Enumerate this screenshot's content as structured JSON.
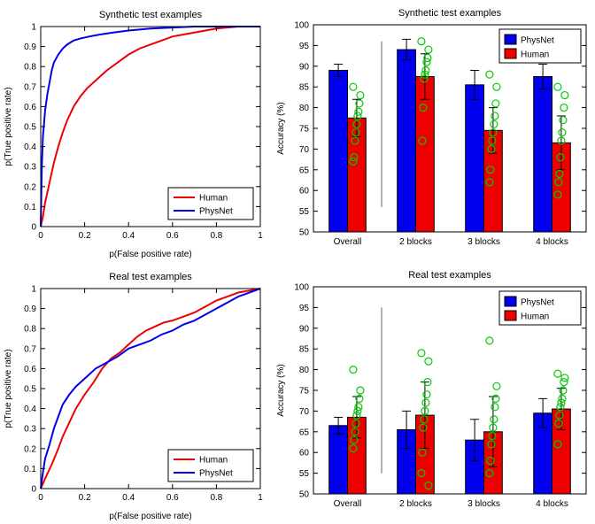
{
  "figure": {
    "background": "#ffffff"
  },
  "colors": {
    "physnet": "#0000ee",
    "human": "#ee0000",
    "subject_points": "#00cc00",
    "separator": "#999999",
    "error_bar": "#000000"
  },
  "chart_data": [
    {
      "id": "roc_synthetic",
      "type": "line",
      "title": "Synthetic test examples",
      "xlabel": "p(False positive rate)",
      "ylabel": "p(True positive rate)",
      "xlim": [
        0,
        1
      ],
      "ylim": [
        0,
        1
      ],
      "xticks": [
        0,
        0.2,
        0.4,
        0.6,
        0.8,
        1
      ],
      "yticks": [
        0,
        0.1,
        0.2,
        0.3,
        0.4,
        0.5,
        0.6,
        0.7,
        0.8,
        0.9,
        1
      ],
      "grid": false,
      "legend": {
        "position": "lower-right"
      },
      "series": [
        {
          "name": "Human",
          "color": "#ee0000",
          "x": [
            0,
            0.01,
            0.02,
            0.04,
            0.06,
            0.08,
            0.1,
            0.12,
            0.15,
            0.18,
            0.21,
            0.25,
            0.3,
            0.35,
            0.4,
            0.45,
            0.5,
            0.55,
            0.6,
            0.65,
            0.7,
            0.75,
            0.8,
            0.85,
            0.9,
            1
          ],
          "y": [
            0,
            0.05,
            0.12,
            0.22,
            0.32,
            0.4,
            0.47,
            0.53,
            0.6,
            0.65,
            0.69,
            0.73,
            0.78,
            0.82,
            0.86,
            0.89,
            0.91,
            0.93,
            0.95,
            0.96,
            0.97,
            0.98,
            0.99,
            0.995,
            1,
            1
          ]
        },
        {
          "name": "PhysNet",
          "color": "#0000ee",
          "x": [
            0,
            0.005,
            0.01,
            0.02,
            0.03,
            0.04,
            0.05,
            0.06,
            0.08,
            0.1,
            0.12,
            0.15,
            0.18,
            0.22,
            0.27,
            0.33,
            0.4,
            0.5,
            0.6,
            0.7,
            1
          ],
          "y": [
            0,
            0.3,
            0.45,
            0.58,
            0.66,
            0.72,
            0.78,
            0.82,
            0.86,
            0.89,
            0.91,
            0.93,
            0.94,
            0.95,
            0.96,
            0.97,
            0.98,
            0.99,
            0.995,
            1,
            1
          ]
        }
      ]
    },
    {
      "id": "bar_synthetic",
      "type": "bar",
      "title": "Synthetic test examples",
      "xlabel": "",
      "ylabel": "Accuracy (%)",
      "ylim": [
        50,
        100
      ],
      "yticks": [
        50,
        55,
        60,
        65,
        70,
        75,
        80,
        85,
        90,
        95,
        100
      ],
      "categories": [
        "Overall",
        "2 blocks",
        "3 blocks",
        "4 blocks"
      ],
      "legend": {
        "position": "upper-right"
      },
      "series": [
        {
          "name": "PhysNet",
          "color": "#0000ee",
          "values": [
            89,
            94,
            85.5,
            87.5
          ],
          "errors": [
            1.5,
            2.5,
            3.5,
            3
          ]
        },
        {
          "name": "Human",
          "color": "#ee0000",
          "values": [
            77.5,
            87.5,
            74.5,
            71.5
          ],
          "errors": [
            4.5,
            5.5,
            5.5,
            6.5
          ]
        }
      ],
      "subject_points": {
        "color": "#00cc00",
        "on_series": "Human",
        "per_category": [
          [
            85,
            83,
            81,
            79,
            78,
            76,
            74,
            72,
            68,
            67
          ],
          [
            96,
            94,
            92,
            91,
            89,
            88,
            87,
            80,
            72
          ],
          [
            88,
            85,
            81,
            78,
            76,
            74,
            72,
            70,
            65,
            62
          ],
          [
            85,
            83,
            80,
            77,
            74,
            72,
            68,
            64,
            62,
            59
          ]
        ]
      },
      "separator": {
        "after_category": 0,
        "y_range": [
          56,
          96
        ],
        "color": "#999999"
      }
    },
    {
      "id": "roc_real",
      "type": "line",
      "title": "Real test examples",
      "xlabel": "p(False positive rate)",
      "ylabel": "p(True positive rate)",
      "xlim": [
        0,
        1
      ],
      "ylim": [
        0,
        1
      ],
      "xticks": [
        0,
        0.2,
        0.4,
        0.6,
        0.8,
        1
      ],
      "yticks": [
        0,
        0.1,
        0.2,
        0.3,
        0.4,
        0.5,
        0.6,
        0.7,
        0.8,
        0.9,
        1
      ],
      "grid": false,
      "legend": {
        "position": "lower-right"
      },
      "series": [
        {
          "name": "Human",
          "color": "#ee0000",
          "x": [
            0,
            0.02,
            0.05,
            0.08,
            0.1,
            0.13,
            0.16,
            0.2,
            0.24,
            0.28,
            0.32,
            0.36,
            0.4,
            0.44,
            0.48,
            0.52,
            0.56,
            0.6,
            0.65,
            0.7,
            0.75,
            0.8,
            0.85,
            0.9,
            1
          ],
          "y": [
            0,
            0.05,
            0.12,
            0.2,
            0.26,
            0.33,
            0.4,
            0.47,
            0.53,
            0.6,
            0.65,
            0.68,
            0.72,
            0.76,
            0.79,
            0.81,
            0.83,
            0.84,
            0.86,
            0.88,
            0.91,
            0.94,
            0.96,
            0.98,
            1
          ]
        },
        {
          "name": "PhysNet",
          "color": "#0000ee",
          "x": [
            0,
            0.01,
            0.02,
            0.04,
            0.06,
            0.08,
            0.1,
            0.13,
            0.16,
            0.2,
            0.25,
            0.3,
            0.35,
            0.4,
            0.45,
            0.5,
            0.55,
            0.6,
            0.65,
            0.7,
            0.75,
            0.8,
            0.85,
            0.9,
            0.95,
            1
          ],
          "y": [
            0,
            0.08,
            0.15,
            0.22,
            0.3,
            0.36,
            0.42,
            0.47,
            0.51,
            0.55,
            0.6,
            0.63,
            0.66,
            0.7,
            0.72,
            0.74,
            0.77,
            0.79,
            0.82,
            0.84,
            0.87,
            0.9,
            0.93,
            0.96,
            0.98,
            1
          ]
        }
      ]
    },
    {
      "id": "bar_real",
      "type": "bar",
      "title": "Real test examples",
      "xlabel": "",
      "ylabel": "Accuracy (%)",
      "ylim": [
        50,
        100
      ],
      "yticks": [
        50,
        55,
        60,
        65,
        70,
        75,
        80,
        85,
        90,
        95,
        100
      ],
      "categories": [
        "Overall",
        "2 blocks",
        "3 blocks",
        "4 blocks"
      ],
      "legend": {
        "position": "upper-right"
      },
      "series": [
        {
          "name": "PhysNet",
          "color": "#0000ee",
          "values": [
            66.5,
            65.5,
            63,
            69.5
          ],
          "errors": [
            2,
            4.5,
            5,
            3.5
          ]
        },
        {
          "name": "Human",
          "color": "#ee0000",
          "values": [
            68.5,
            69,
            65,
            70.5
          ],
          "errors": [
            5,
            8,
            8.5,
            5
          ]
        }
      ],
      "subject_points": {
        "color": "#00cc00",
        "on_series": "Human",
        "per_category": [
          [
            80,
            75,
            73,
            71,
            70,
            69,
            67,
            65,
            63,
            61
          ],
          [
            84,
            82,
            77,
            74,
            72,
            70,
            68,
            66,
            60,
            55,
            52
          ],
          [
            87,
            76,
            73,
            71,
            68,
            66,
            64,
            62,
            58,
            55
          ],
          [
            79,
            78,
            77,
            75,
            73,
            72,
            71,
            69,
            67,
            62
          ]
        ]
      },
      "separator": {
        "after_category": 0,
        "y_range": [
          55,
          95
        ],
        "color": "#999999"
      }
    }
  ]
}
